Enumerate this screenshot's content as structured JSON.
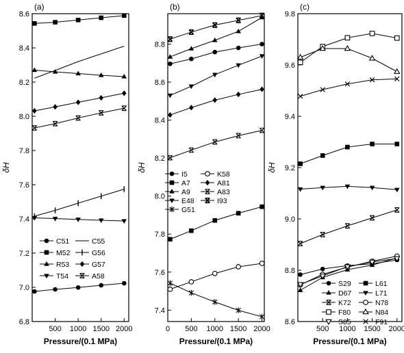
{
  "chart_data": [
    {
      "panel": "(a)",
      "type": "line",
      "xlabel": "Pressure/(0.1 MPa)",
      "ylabel": "δH",
      "xlim": [
        0,
        2100
      ],
      "ylim": [
        6.8,
        8.6
      ],
      "xticks": [
        500,
        1000,
        1500,
        2000
      ],
      "yticks": [
        6.8,
        7.0,
        7.2,
        7.4,
        7.6,
        7.8,
        8.0,
        8.2,
        8.4,
        8.6
      ],
      "legend_position": "bottom-right",
      "x": [
        50,
        500,
        1000,
        1500,
        2000
      ],
      "series": [
        {
          "name": "C51",
          "marker": "circle-filled",
          "values": [
            6.976,
            6.988,
            6.999,
            7.012,
            7.024
          ]
        },
        {
          "name": "C55",
          "marker": "line",
          "values": [
            8.223,
            8.268,
            8.32,
            8.365,
            8.41
          ]
        },
        {
          "name": "M52",
          "marker": "square-filled",
          "values": [
            8.543,
            8.55,
            8.563,
            8.576,
            8.589
          ]
        },
        {
          "name": "G56",
          "marker": "plus-vertical",
          "values": [
            7.416,
            7.45,
            7.492,
            7.533,
            7.574
          ]
        },
        {
          "name": "R53",
          "marker": "triangle-up-filled",
          "values": [
            8.27,
            8.26,
            8.25,
            8.24,
            8.232
          ]
        },
        {
          "name": "G57",
          "marker": "diamond-filled",
          "values": [
            8.032,
            8.055,
            8.082,
            8.108,
            8.135
          ]
        },
        {
          "name": "T54",
          "marker": "triangle-down-filled",
          "values": [
            7.406,
            7.402,
            7.397,
            7.392,
            7.388
          ]
        },
        {
          "name": "A58",
          "marker": "x-bar",
          "values": [
            7.932,
            7.957,
            7.99,
            8.02,
            8.047
          ]
        }
      ]
    },
    {
      "panel": "(b)",
      "type": "line",
      "xlabel": "Pressure/(0.1 MPa)",
      "ylabel": "δH",
      "xlim": [
        0,
        2050
      ],
      "ylim": [
        7.34,
        8.96
      ],
      "xticks": [
        0,
        500,
        1000,
        1500,
        2000
      ],
      "yticks": [
        7.4,
        7.6,
        7.8,
        8.0,
        8.2,
        8.4,
        8.6,
        8.8
      ],
      "legend_position": "center-left",
      "x": [
        50,
        500,
        1000,
        1500,
        2000
      ],
      "series": [
        {
          "name": "I5",
          "marker": "circle-filled",
          "values": [
            8.696,
            8.722,
            8.758,
            8.78,
            8.8
          ]
        },
        {
          "name": "K58",
          "marker": "circle-open",
          "values": [
            7.51,
            7.549,
            7.593,
            7.628,
            7.646
          ]
        },
        {
          "name": "A7",
          "marker": "square-filled",
          "values": [
            7.773,
            7.818,
            7.872,
            7.91,
            7.944
          ]
        },
        {
          "name": "A81",
          "marker": "diamond-filled",
          "values": [
            8.427,
            8.466,
            8.505,
            8.535,
            8.562
          ]
        },
        {
          "name": "A9",
          "marker": "triangle-up-filled",
          "values": [
            8.733,
            8.776,
            8.82,
            8.867,
            8.94
          ]
        },
        {
          "name": "A83",
          "marker": "x-bar",
          "values": [
            8.202,
            8.242,
            8.285,
            8.318,
            8.346
          ]
        },
        {
          "name": "E48",
          "marker": "triangle-down-filled",
          "values": [
            8.53,
            8.578,
            8.639,
            8.689,
            8.737
          ]
        },
        {
          "name": "I93",
          "marker": "x-bar-double",
          "values": [
            8.826,
            8.863,
            8.9,
            8.925,
            8.95
          ]
        },
        {
          "name": "G51",
          "marker": "asterisk",
          "values": [
            7.542,
            7.491,
            7.443,
            7.399,
            7.365
          ]
        }
      ]
    },
    {
      "panel": "(c)",
      "type": "line",
      "xlabel": "Pressure/(0.1 MPa)",
      "ylabel": "δH",
      "xlim": [
        0,
        2100
      ],
      "ylim": [
        8.6,
        9.8
      ],
      "xticks": [
        500,
        1000,
        1500,
        2000
      ],
      "yticks": [
        8.6,
        8.8,
        9.0,
        9.2,
        9.4,
        9.6,
        9.8
      ],
      "legend_position": "bottom-center",
      "x": [
        50,
        500,
        1000,
        1500,
        2000
      ],
      "series": [
        {
          "name": "S29",
          "marker": "circle-filled",
          "values": [
            8.783,
            8.805,
            8.818,
            8.825,
            8.84
          ]
        },
        {
          "name": "L61",
          "marker": "square-filled",
          "values": [
            9.215,
            9.247,
            9.28,
            9.292,
            9.292
          ]
        },
        {
          "name": "D67",
          "marker": "triangle-up-filled",
          "values": [
            8.722,
            8.772,
            8.802,
            8.82,
            8.848
          ]
        },
        {
          "name": "L71",
          "marker": "triangle-down-filled",
          "values": [
            9.116,
            9.122,
            9.127,
            9.122,
            9.114
          ]
        },
        {
          "name": "K72",
          "marker": "x-bar",
          "values": [
            8.904,
            8.939,
            8.973,
            9.004,
            9.035
          ]
        },
        {
          "name": "N78",
          "marker": "circle-open",
          "values": [
            8.743,
            8.784,
            8.812,
            8.835,
            8.855
          ]
        },
        {
          "name": "F80",
          "marker": "square-open",
          "values": [
            9.61,
            9.672,
            9.706,
            9.723,
            9.705
          ]
        },
        {
          "name": "N84",
          "marker": "triangle-up-open",
          "values": [
            9.63,
            9.664,
            9.664,
            9.626,
            9.574
          ]
        },
        {
          "name": "S85",
          "marker": "triangle-down-open",
          "values": [
            8.745,
            8.778,
            8.814,
            8.832,
            8.846
          ]
        },
        {
          "name": "F91",
          "marker": "x-open",
          "values": [
            9.478,
            9.504,
            9.526,
            9.542,
            9.546
          ]
        }
      ]
    }
  ]
}
